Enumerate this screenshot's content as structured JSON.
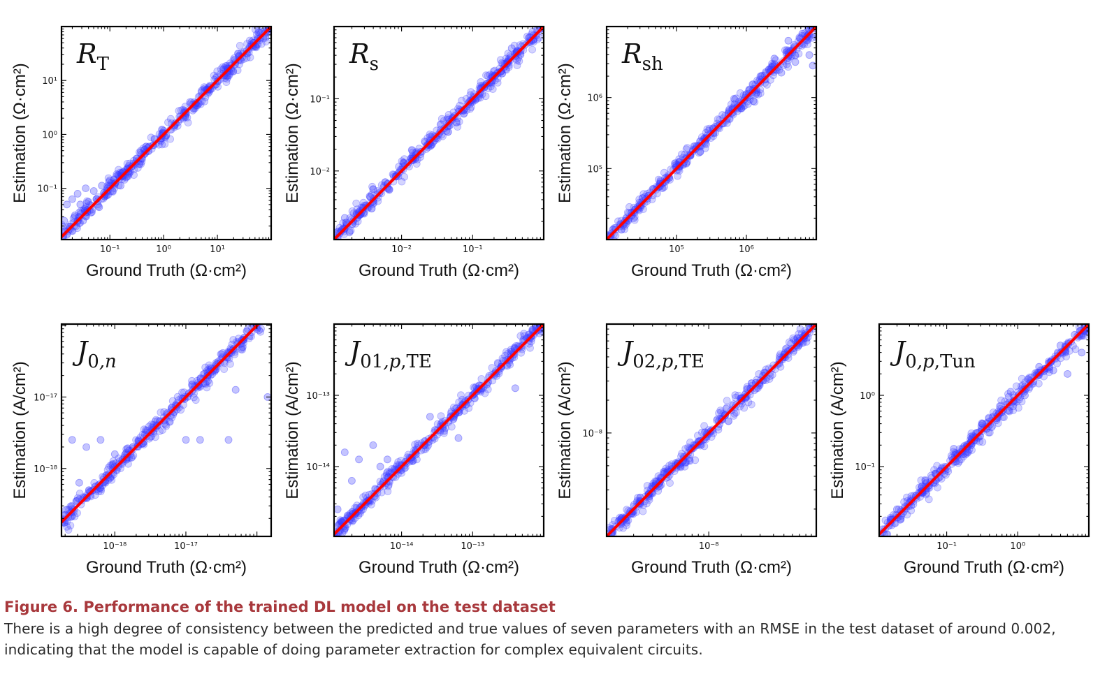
{
  "figure": {
    "caption_title": "Figure 6.  Performance of the trained DL model on the test dataset",
    "caption_body": "There is a high degree of consistency between the predicted and true values of seven parameters with an RMSE in the test dataset of around 0.002, indicating that the model is capable of doing parameter extraction for complex equivalent circuits."
  },
  "colors": {
    "points": "#3a3aff",
    "fit_line": "#ff0000",
    "caption_title": "#a8383c"
  },
  "chart_data": [
    {
      "type": "scatter",
      "title_main": "R",
      "title_sub": "T",
      "xlabel": "Ground Truth (Ω·cm²)",
      "ylabel": "Estimation (Ω·cm²)",
      "x_scale": "log",
      "y_scale": "log",
      "xlim_log10": [
        -1.9,
        2.0
      ],
      "ylim_log10": [
        -1.95,
        2.0
      ],
      "x_ticks": [
        {
          "exp": -1,
          "label": "10⁻¹"
        },
        {
          "exp": 0,
          "label": "10⁰"
        },
        {
          "exp": 1,
          "label": "10¹"
        }
      ],
      "y_ticks": [
        {
          "exp": -1,
          "label": "10⁻¹"
        },
        {
          "exp": 0,
          "label": "10⁰"
        },
        {
          "exp": 1,
          "label": "10¹"
        }
      ],
      "reference_line": "y = x",
      "points": [
        [
          -1.85,
          -1.6
        ],
        [
          -1.8,
          -1.3
        ],
        [
          -1.75,
          -1.75
        ],
        [
          -1.7,
          -1.2
        ],
        [
          -1.65,
          -1.5
        ],
        [
          -1.6,
          -1.1
        ],
        [
          -1.55,
          -1.3
        ],
        [
          -1.5,
          -1.6
        ],
        [
          -1.45,
          -1.0
        ],
        [
          -1.4,
          -1.25
        ],
        [
          -1.35,
          -1.45
        ],
        [
          -1.3,
          -1.05
        ],
        [
          -1.25,
          -1.2
        ],
        [
          -1.2,
          -1.35
        ],
        [
          -1.15,
          -0.95
        ],
        [
          -1.1,
          -1.15
        ],
        [
          -1.05,
          -1.0
        ],
        [
          -1.0,
          -0.85
        ],
        [
          -0.95,
          -1.05
        ],
        [
          -0.9,
          -0.9
        ],
        [
          -0.85,
          -0.75
        ],
        [
          -0.8,
          -0.95
        ],
        [
          -0.75,
          -0.7
        ],
        [
          -0.7,
          -0.8
        ],
        [
          -0.6,
          -0.6
        ],
        [
          -0.5,
          -0.45
        ],
        [
          -0.4,
          -0.45
        ],
        [
          -0.3,
          -0.25
        ],
        [
          -0.2,
          -0.2
        ],
        [
          0.0,
          0.02
        ],
        [
          0.2,
          0.17
        ],
        [
          0.4,
          0.42
        ],
        [
          0.6,
          0.58
        ],
        [
          0.8,
          0.83
        ],
        [
          1.0,
          0.98
        ],
        [
          1.2,
          1.22
        ],
        [
          1.4,
          1.38
        ],
        [
          1.6,
          1.62
        ],
        [
          1.8,
          1.79
        ],
        [
          1.95,
          1.96
        ]
      ]
    },
    {
      "type": "scatter",
      "title_main": "R",
      "title_sub": "s",
      "xlabel": "Ground Truth (Ω·cm²)",
      "ylabel": "Estimation (Ω·cm²)",
      "x_scale": "log",
      "y_scale": "log",
      "xlim_log10": [
        -2.95,
        0.0
      ],
      "ylim_log10": [
        -2.95,
        0.0
      ],
      "x_ticks": [
        {
          "exp": -2,
          "label": "10⁻²"
        },
        {
          "exp": -1,
          "label": "10⁻¹"
        }
      ],
      "y_ticks": [
        {
          "exp": -2,
          "label": "10⁻²"
        },
        {
          "exp": -1,
          "label": "10⁻¹"
        }
      ],
      "reference_line": "y = x",
      "points": [
        [
          -2.9,
          -2.92
        ],
        [
          -2.8,
          -2.65
        ],
        [
          -2.6,
          -2.58
        ],
        [
          -2.4,
          -2.42
        ],
        [
          -2.2,
          -2.18
        ],
        [
          -2.0,
          -1.98
        ],
        [
          -1.8,
          -1.82
        ],
        [
          -1.6,
          -1.59
        ],
        [
          -1.4,
          -1.41
        ],
        [
          -1.2,
          -1.18
        ],
        [
          -1.0,
          -1.02
        ],
        [
          -0.8,
          -0.79
        ],
        [
          -0.6,
          -0.62
        ],
        [
          -0.45,
          -0.3
        ],
        [
          -0.4,
          -0.41
        ],
        [
          -0.2,
          -0.22
        ],
        [
          -0.05,
          -0.04
        ]
      ]
    },
    {
      "type": "scatter",
      "title_main": "R",
      "title_sub": "sh",
      "xlabel": "Ground Truth (Ω·cm²)",
      "ylabel": "Estimation (Ω·cm²)",
      "x_scale": "log",
      "y_scale": "log",
      "xlim_log10": [
        4.0,
        7.0
      ],
      "ylim_log10": [
        4.0,
        7.0
      ],
      "x_ticks": [
        {
          "exp": 5,
          "label": "10⁵"
        },
        {
          "exp": 6,
          "label": "10⁶"
        }
      ],
      "y_ticks": [
        {
          "exp": 5,
          "label": "10⁵"
        },
        {
          "exp": 6,
          "label": "10⁶"
        }
      ],
      "reference_line": "y = x",
      "points": [
        [
          4.05,
          4.05
        ],
        [
          4.2,
          4.22
        ],
        [
          4.4,
          4.38
        ],
        [
          4.6,
          4.62
        ],
        [
          4.8,
          4.79
        ],
        [
          5.0,
          5.02
        ],
        [
          5.2,
          5.18
        ],
        [
          5.4,
          5.42
        ],
        [
          5.6,
          5.58
        ],
        [
          5.8,
          5.85
        ],
        [
          6.0,
          6.05
        ],
        [
          6.1,
          5.95
        ],
        [
          6.2,
          6.3
        ],
        [
          6.4,
          6.55
        ],
        [
          6.5,
          6.35
        ],
        [
          6.6,
          6.8
        ],
        [
          6.7,
          6.5
        ],
        [
          6.8,
          6.9
        ],
        [
          6.9,
          6.6
        ],
        [
          6.95,
          6.45
        ]
      ]
    },
    {
      "type": "scatter",
      "title_main": "J",
      "title_sub": "0,n",
      "xlabel": "Ground Truth (Ω·cm²)",
      "ylabel": "Estimation (A/cm²)",
      "x_scale": "log",
      "y_scale": "log",
      "xlim_log10": [
        -18.75,
        -15.8
      ],
      "ylim_log10": [
        -18.95,
        -15.98
      ],
      "x_ticks": [
        {
          "exp": -18,
          "label": "10⁻¹⁸"
        },
        {
          "exp": -17,
          "label": "10⁻¹⁷"
        }
      ],
      "y_ticks": [
        {
          "exp": -18,
          "label": "10⁻¹⁸"
        },
        {
          "exp": -17,
          "label": "10⁻¹⁷"
        }
      ],
      "reference_line": "y = x",
      "points": [
        [
          -18.7,
          -18.65
        ],
        [
          -18.6,
          -17.6
        ],
        [
          -18.5,
          -18.2
        ],
        [
          -18.4,
          -17.7
        ],
        [
          -18.3,
          -18.3
        ],
        [
          -18.2,
          -17.6
        ],
        [
          -18.0,
          -17.8
        ],
        [
          -17.8,
          -17.75
        ],
        [
          -17.6,
          -17.65
        ],
        [
          -17.4,
          -17.4
        ],
        [
          -17.2,
          -17.15
        ],
        [
          -17.0,
          -17.6
        ],
        [
          -16.8,
          -17.6
        ],
        [
          -16.6,
          -16.6
        ],
        [
          -16.4,
          -17.6
        ],
        [
          -16.3,
          -16.9
        ],
        [
          -16.2,
          -16.3
        ],
        [
          -16.0,
          -16.05
        ],
        [
          -15.85,
          -17.0
        ],
        [
          -15.9,
          -15.9
        ]
      ]
    },
    {
      "type": "scatter",
      "title_main": "J",
      "title_sub": "01,p,TE",
      "xlabel": "Ground Truth (Ω·cm²)",
      "ylabel": "Estimation (A/cm²)",
      "x_scale": "log",
      "y_scale": "log",
      "xlim_log10": [
        -14.95,
        -12.0
      ],
      "ylim_log10": [
        -14.98,
        -12.0
      ],
      "x_ticks": [
        {
          "exp": -14,
          "label": "10⁻¹⁴"
        },
        {
          "exp": -13,
          "label": "10⁻¹³"
        }
      ],
      "y_ticks": [
        {
          "exp": -14,
          "label": "10⁻¹⁴"
        },
        {
          "exp": -13,
          "label": "10⁻¹³"
        }
      ],
      "reference_line": "y = x",
      "points": [
        [
          -14.9,
          -14.6
        ],
        [
          -14.8,
          -13.8
        ],
        [
          -14.7,
          -14.2
        ],
        [
          -14.6,
          -13.9
        ],
        [
          -14.5,
          -14.5
        ],
        [
          -14.4,
          -13.7
        ],
        [
          -14.3,
          -14.0
        ],
        [
          -14.2,
          -13.9
        ],
        [
          -14.0,
          -14.05
        ],
        [
          -13.8,
          -13.8
        ],
        [
          -13.6,
          -13.3
        ],
        [
          -13.4,
          -13.5
        ],
        [
          -13.2,
          -13.6
        ],
        [
          -13.0,
          -13.0
        ],
        [
          -12.8,
          -12.85
        ],
        [
          -12.6,
          -12.6
        ],
        [
          -12.3,
          -12.3
        ],
        [
          -12.4,
          -12.9
        ],
        [
          -12.05,
          -12.05
        ]
      ]
    },
    {
      "type": "scatter",
      "title_main": "J",
      "title_sub": "02,p,TE",
      "xlabel": "Ground Truth (Ω·cm²)",
      "ylabel": "Estimation (A/cm²)",
      "x_scale": "log",
      "y_scale": "log",
      "xlim_log10": [
        -8.95,
        -7.0
      ],
      "ylim_log10": [
        -8.95,
        -7.0
      ],
      "x_ticks": [
        {
          "exp": -8,
          "label": "10⁻⁸"
        }
      ],
      "y_ticks": [
        {
          "exp": -8,
          "label": "10⁻⁸"
        }
      ],
      "reference_line": "y = x",
      "points": [
        [
          -8.9,
          -8.88
        ],
        [
          -8.7,
          -8.72
        ],
        [
          -8.5,
          -8.48
        ],
        [
          -8.3,
          -8.32
        ],
        [
          -8.1,
          -8.08
        ],
        [
          -7.9,
          -7.92
        ],
        [
          -7.7,
          -7.68
        ],
        [
          -7.5,
          -7.52
        ],
        [
          -7.3,
          -7.28
        ],
        [
          -7.1,
          -7.1
        ]
      ]
    },
    {
      "type": "scatter",
      "title_main": "J",
      "title_sub": "0,p,Tun",
      "xlabel": "Ground Truth (Ω·cm²)",
      "ylabel": "Estimation (A/cm²)",
      "x_scale": "log",
      "y_scale": "log",
      "xlim_log10": [
        -1.95,
        1.0
      ],
      "ylim_log10": [
        -1.98,
        1.0
      ],
      "x_ticks": [
        {
          "exp": -1,
          "label": "10⁻¹"
        },
        {
          "exp": 0,
          "label": "10⁰"
        }
      ],
      "y_ticks": [
        {
          "exp": -1,
          "label": "10⁻¹"
        },
        {
          "exp": 0,
          "label": "10⁰"
        }
      ],
      "reference_line": "y = x",
      "points": [
        [
          -1.9,
          -1.88
        ],
        [
          -1.7,
          -1.6
        ],
        [
          -1.5,
          -1.55
        ],
        [
          -1.3,
          -1.2
        ],
        [
          -1.1,
          -1.15
        ],
        [
          -0.9,
          -0.75
        ],
        [
          -0.7,
          -0.8
        ],
        [
          -0.5,
          -0.4
        ],
        [
          -0.3,
          -0.35
        ],
        [
          -0.1,
          0.05
        ],
        [
          0.1,
          0.0
        ],
        [
          0.3,
          0.4
        ],
        [
          0.5,
          0.35
        ],
        [
          0.6,
          0.7
        ],
        [
          0.7,
          0.3
        ],
        [
          0.8,
          0.85
        ],
        [
          0.9,
          0.6
        ],
        [
          0.95,
          0.9
        ]
      ]
    }
  ]
}
